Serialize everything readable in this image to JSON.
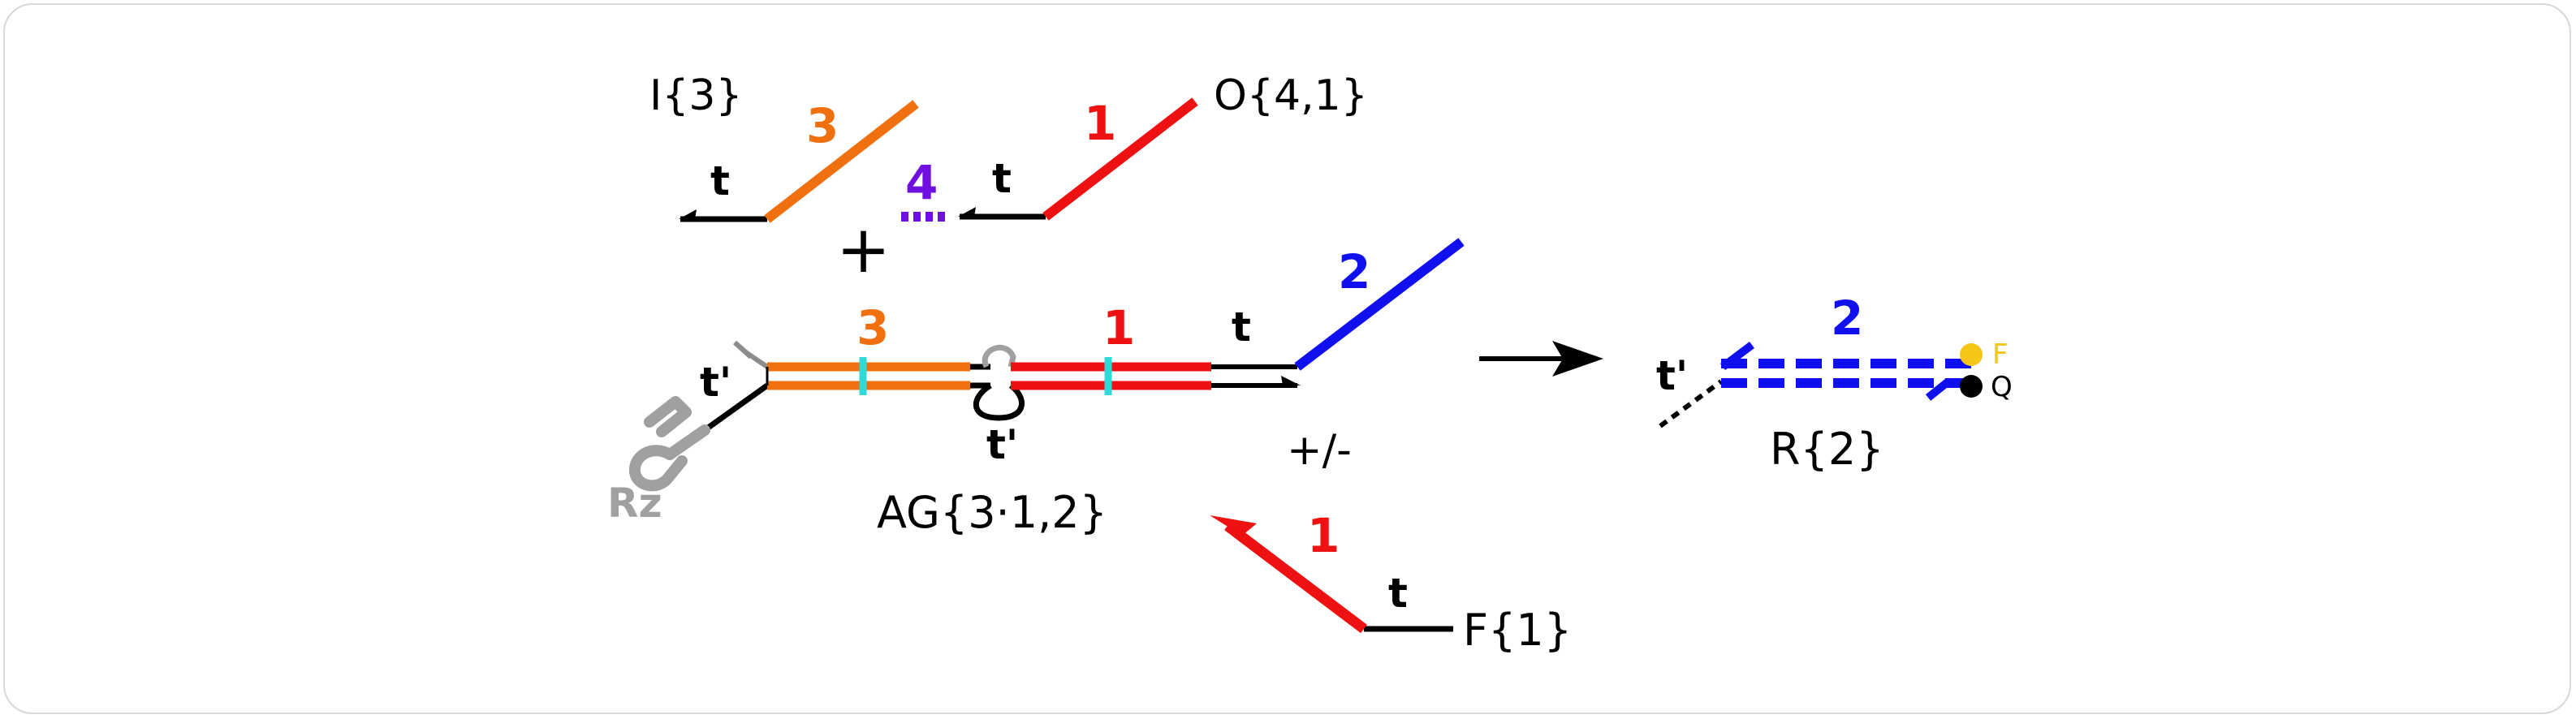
{
  "colors": {
    "orange": "#f07010",
    "red": "#ee1111",
    "blue": "#1010ee",
    "purple": "#7010e0",
    "black": "#000000",
    "gray": "#a0a0a0",
    "cyan": "#30d8d8",
    "fluorophore": "#f5c518",
    "quencher": "#000000"
  },
  "labels": {
    "input_name": "I{3}",
    "output_name": "O{4,1}",
    "domain_3": "3",
    "domain_1": "1",
    "domain_4": "4",
    "domain_2": "2",
    "toehold_t": "t",
    "toehold_t_prime": "t'",
    "plus": "+",
    "gate_name": "AG{3·1,2}",
    "ribozyme": "Rz",
    "plus_minus": "+/-",
    "reporter_name": "R{2}",
    "fluor": "F",
    "quench": "Q",
    "fuel_name": "F{1}"
  },
  "icons": {
    "reaction_arrow": "right-arrow-icon",
    "ribozyme": "ribozyme-hairpin-icon",
    "loop": "hairpin-loop-icon"
  }
}
